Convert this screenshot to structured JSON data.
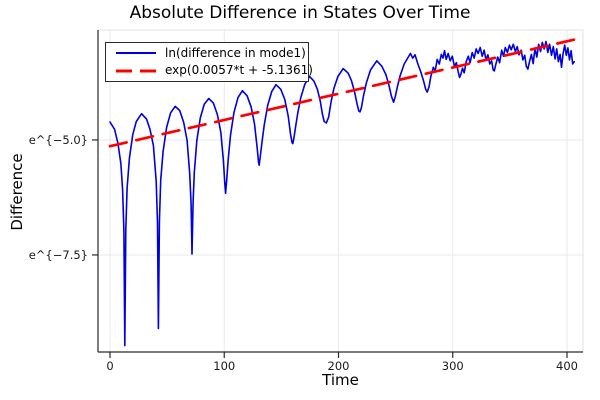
{
  "chart_data": {
    "type": "line",
    "title": "Absolute Difference in States Over Time",
    "xlabel": "Time",
    "ylabel": "Difference",
    "xlim": [
      -10.5,
      414
    ],
    "ylim": [
      -9.61,
      -2.61
    ],
    "grid": true,
    "legend_position": "top-left",
    "xticks": {
      "values": [
        0,
        100,
        200,
        300,
        400
      ],
      "labels": [
        "0",
        "100",
        "200",
        "300",
        "400"
      ]
    },
    "yticks": {
      "values": [
        -5.0,
        -7.5
      ],
      "labels": [
        "e^{−5.0}",
        "e^{−7.5}"
      ]
    },
    "fit": {
      "slope": 0.0057,
      "intercept": -5.1361
    },
    "series": [
      {
        "name": "ln(difference in mode1)",
        "color": "#0000e0",
        "style": "solid",
        "width": 1.6,
        "points": [
          [
            0,
            -4.61
          ],
          [
            4,
            -4.77
          ],
          [
            7,
            -5.08
          ],
          [
            9.5,
            -5.52
          ],
          [
            11,
            -6.08
          ],
          [
            12.2,
            -6.98
          ],
          [
            13,
            -9.47
          ],
          [
            13.8,
            -6.95
          ],
          [
            15,
            -6.05
          ],
          [
            17,
            -5.4
          ],
          [
            20,
            -4.88
          ],
          [
            23,
            -4.6
          ],
          [
            27.7,
            -4.43
          ],
          [
            32,
            -4.55
          ],
          [
            35,
            -4.77
          ],
          [
            38,
            -5.12
          ],
          [
            40.4,
            -5.9
          ],
          [
            41.6,
            -6.8
          ],
          [
            42.4,
            -9.1
          ],
          [
            43.2,
            -6.78
          ],
          [
            44.4,
            -5.88
          ],
          [
            46.5,
            -5.25
          ],
          [
            49.5,
            -4.73
          ],
          [
            53,
            -4.41
          ],
          [
            57.1,
            -4.27
          ],
          [
            61,
            -4.36
          ],
          [
            64.5,
            -4.62
          ],
          [
            67.5,
            -5.01
          ],
          [
            69.8,
            -5.73
          ],
          [
            71,
            -6.4
          ],
          [
            71.8,
            -7.48
          ],
          [
            72.7,
            -6.35
          ],
          [
            73.8,
            -5.71
          ],
          [
            76,
            -5.02
          ],
          [
            79,
            -4.52
          ],
          [
            82.5,
            -4.22
          ],
          [
            86.5,
            -4.1
          ],
          [
            90.5,
            -4.2
          ],
          [
            94,
            -4.45
          ],
          [
            97,
            -4.83
          ],
          [
            99.3,
            -5.45
          ],
          [
            100.5,
            -5.95
          ],
          [
            101.2,
            -6.16
          ],
          [
            102.2,
            -5.85
          ],
          [
            103.4,
            -5.45
          ],
          [
            105.5,
            -4.9
          ],
          [
            108.5,
            -4.4
          ],
          [
            112,
            -4.08
          ],
          [
            115.9,
            -3.93
          ],
          [
            120,
            -4.04
          ],
          [
            123.5,
            -4.28
          ],
          [
            126.5,
            -4.65
          ],
          [
            128.8,
            -5.18
          ],
          [
            130,
            -5.48
          ],
          [
            130.6,
            -5.55
          ],
          [
            131.8,
            -5.3
          ],
          [
            133,
            -5.05
          ],
          [
            135,
            -4.68
          ],
          [
            138,
            -4.25
          ],
          [
            141.5,
            -3.95
          ],
          [
            145.3,
            -3.8
          ],
          [
            149.5,
            -3.9
          ],
          [
            153,
            -4.12
          ],
          [
            156,
            -4.48
          ],
          [
            158.2,
            -4.9
          ],
          [
            159.4,
            -5.06
          ],
          [
            160,
            -5.08
          ],
          [
            161.2,
            -4.92
          ],
          [
            162.5,
            -4.7
          ],
          [
            164.5,
            -4.4
          ],
          [
            167,
            -4.08
          ],
          [
            170.5,
            -3.79
          ],
          [
            174.7,
            -3.62
          ],
          [
            178.5,
            -3.72
          ],
          [
            181.5,
            -3.9
          ],
          [
            184,
            -4.15
          ],
          [
            186,
            -4.45
          ],
          [
            187.5,
            -4.6
          ],
          [
            189.4,
            -4.63
          ],
          [
            191.4,
            -4.5
          ],
          [
            193.4,
            -4.18
          ],
          [
            196,
            -3.88
          ],
          [
            199.5,
            -3.62
          ],
          [
            204.1,
            -3.45
          ],
          [
            208.5,
            -3.55
          ],
          [
            211.5,
            -3.72
          ],
          [
            214,
            -3.95
          ],
          [
            216.3,
            -4.22
          ],
          [
            217.8,
            -4.37
          ],
          [
            218.8,
            -4.39
          ],
          [
            220,
            -4.3
          ],
          [
            221.8,
            -4.05
          ],
          [
            224.5,
            -3.75
          ],
          [
            228,
            -3.48
          ],
          [
            233.5,
            -3.28
          ],
          [
            238,
            -3.4
          ],
          [
            241.5,
            -3.58
          ],
          [
            244,
            -3.8
          ],
          [
            246.3,
            -4.05
          ],
          [
            248.2,
            -4.18
          ],
          [
            249.8,
            -4.05
          ],
          [
            251.5,
            -3.85
          ],
          [
            254,
            -3.6
          ],
          [
            257.5,
            -3.35
          ],
          [
            262.9,
            -3.12
          ],
          [
            265,
            -3.22
          ],
          [
            267,
            -3.15
          ],
          [
            269.5,
            -3.35
          ],
          [
            272,
            -3.52
          ],
          [
            274.5,
            -3.72
          ],
          [
            276.3,
            -3.9
          ],
          [
            277.6,
            -3.96
          ],
          [
            279.2,
            -3.85
          ],
          [
            280.8,
            -3.62
          ],
          [
            283,
            -3.42
          ],
          [
            284.6,
            -3.5
          ],
          [
            286.4,
            -3.25
          ],
          [
            288.2,
            -3.35
          ],
          [
            290,
            -3.14
          ],
          [
            291.5,
            -3.22
          ],
          [
            292.8,
            -3.06
          ],
          [
            294.3,
            -3.25
          ],
          [
            296,
            -3.12
          ],
          [
            297.8,
            -3.28
          ],
          [
            299.6,
            -3.18
          ],
          [
            301.4,
            -3.4
          ],
          [
            303.2,
            -3.32
          ],
          [
            304.8,
            -3.52
          ],
          [
            306,
            -3.64
          ],
          [
            307,
            -3.58
          ],
          [
            308.5,
            -3.44
          ],
          [
            310,
            -3.54
          ],
          [
            311.8,
            -3.3
          ],
          [
            313.6,
            -3.18
          ],
          [
            315.2,
            -3.32
          ],
          [
            317,
            -3.1
          ],
          [
            318.8,
            -3.22
          ],
          [
            320.5,
            -3.02
          ],
          [
            322.2,
            -3.12
          ],
          [
            324,
            -2.99
          ],
          [
            325.8,
            -3.18
          ],
          [
            327.4,
            -3.05
          ],
          [
            329,
            -3.25
          ],
          [
            330.8,
            -3.15
          ],
          [
            332.4,
            -3.35
          ],
          [
            334,
            -3.28
          ],
          [
            335.4,
            -3.48
          ],
          [
            336.4,
            -3.5
          ],
          [
            337.8,
            -3.35
          ],
          [
            339.4,
            -3.2
          ],
          [
            341,
            -3.32
          ],
          [
            342.8,
            -3.05
          ],
          [
            344.4,
            -3.18
          ],
          [
            346,
            -2.99
          ],
          [
            347.8,
            -3.1
          ],
          [
            349.6,
            -2.94
          ],
          [
            351.2,
            -3.04
          ],
          [
            353,
            -2.92
          ],
          [
            354.8,
            -3.08
          ],
          [
            356.4,
            -2.97
          ],
          [
            358,
            -3.15
          ],
          [
            359.8,
            -3.05
          ],
          [
            361.4,
            -3.26
          ],
          [
            363,
            -3.16
          ],
          [
            364.4,
            -3.4
          ],
          [
            365.8,
            -3.46
          ],
          [
            367.2,
            -3.3
          ],
          [
            368.8,
            -3.14
          ],
          [
            370.4,
            -3.34
          ],
          [
            372,
            -3.0
          ],
          [
            373.6,
            -3.2
          ],
          [
            375.2,
            -2.92
          ],
          [
            376.8,
            -3.08
          ],
          [
            378.4,
            -2.88
          ],
          [
            380,
            -3.02
          ],
          [
            381.6,
            -2.86
          ],
          [
            383.2,
            -3.1
          ],
          [
            384.8,
            -2.92
          ],
          [
            386.4,
            -3.16
          ],
          [
            388,
            -2.97
          ],
          [
            389.6,
            -3.24
          ],
          [
            391,
            -3.02
          ],
          [
            392.5,
            -3.3
          ],
          [
            394,
            -3.14
          ],
          [
            395.2,
            -3.42
          ],
          [
            396.6,
            -3.12
          ],
          [
            398,
            -2.94
          ],
          [
            399.4,
            -3.16
          ],
          [
            400.8,
            -3.0
          ],
          [
            402.2,
            -3.26
          ],
          [
            403.6,
            -3.06
          ],
          [
            405,
            -3.35
          ],
          [
            406.3,
            -3.3
          ]
        ]
      },
      {
        "name": "exp(0.0057*t + -5.1361)",
        "color": "#ff0000",
        "style": "dashed",
        "width": 2.7,
        "points": [
          [
            0,
            -5.1361
          ],
          [
            408,
            -2.8105
          ]
        ]
      }
    ],
    "style": {
      "grid_color": "#e9e9e9",
      "spine_color": "#2a2a2a",
      "frame_color": "#e2e2e2",
      "tick_label_color": "#1a1a1a",
      "background": "#ffffff"
    }
  }
}
